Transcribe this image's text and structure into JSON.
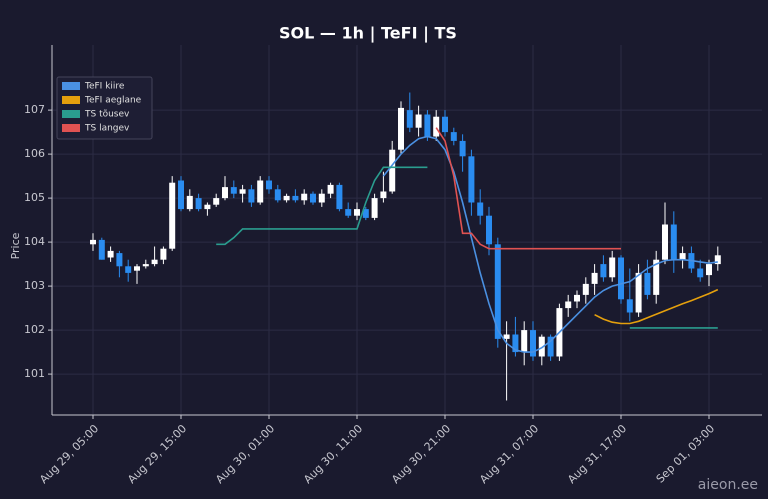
{
  "chart_data": {
    "type": "candlestick",
    "title": "SOL — 1h  |  TeFI  |  TS",
    "y_label": "Price",
    "watermark": "aieon.ee",
    "up_color": "#ffffff",
    "down_color": "#2a8cf0",
    "grid": true,
    "legend": "upper left",
    "x": [
      "Aug 29, 05:00",
      "Aug 29, 06:00",
      "Aug 29, 07:00",
      "Aug 29, 08:00",
      "Aug 29, 09:00",
      "Aug 29, 10:00",
      "Aug 29, 11:00",
      "Aug 29, 12:00",
      "Aug 29, 13:00",
      "Aug 29, 14:00",
      "Aug 29, 15:00",
      "Aug 29, 16:00",
      "Aug 29, 17:00",
      "Aug 29, 18:00",
      "Aug 29, 19:00",
      "Aug 29, 20:00",
      "Aug 29, 21:00",
      "Aug 29, 22:00",
      "Aug 29, 23:00",
      "Aug 30, 00:00",
      "Aug 30, 01:00",
      "Aug 30, 02:00",
      "Aug 30, 03:00",
      "Aug 30, 04:00",
      "Aug 30, 05:00",
      "Aug 30, 06:00",
      "Aug 30, 07:00",
      "Aug 30, 08:00",
      "Aug 30, 09:00",
      "Aug 30, 10:00",
      "Aug 30, 11:00",
      "Aug 30, 12:00",
      "Aug 30, 13:00",
      "Aug 30, 14:00",
      "Aug 30, 15:00",
      "Aug 30, 16:00",
      "Aug 30, 17:00",
      "Aug 30, 18:00",
      "Aug 30, 19:00",
      "Aug 30, 20:00",
      "Aug 30, 21:00",
      "Aug 30, 22:00",
      "Aug 30, 23:00",
      "Aug 31, 00:00",
      "Aug 31, 01:00",
      "Aug 31, 02:00",
      "Aug 31, 03:00",
      "Aug 31, 04:00",
      "Aug 31, 05:00",
      "Aug 31, 06:00",
      "Aug 31, 07:00",
      "Aug 31, 08:00",
      "Aug 31, 09:00",
      "Aug 31, 10:00",
      "Aug 31, 11:00",
      "Aug 31, 12:00",
      "Aug 31, 13:00",
      "Aug 31, 14:00",
      "Aug 31, 15:00",
      "Aug 31, 16:00",
      "Aug 31, 17:00",
      "Aug 31, 18:00",
      "Aug 31, 19:00",
      "Aug 31, 20:00",
      "Aug 31, 21:00",
      "Aug 31, 22:00",
      "Aug 31, 23:00",
      "Sep 01, 00:00",
      "Sep 01, 01:00",
      "Sep 01, 02:00",
      "Sep 01, 03:00",
      "Sep 01, 04:00"
    ],
    "xticks": [
      "Aug 29, 05:00",
      "Aug 29, 15:00",
      "Aug 30, 01:00",
      "Aug 30, 11:00",
      "Aug 30, 21:00",
      "Aug 31, 07:00",
      "Aug 31, 17:00",
      "Sep 01, 03:00"
    ],
    "ylim": [
      100.07,
      108.48
    ],
    "yticks": [
      101,
      102,
      103,
      104,
      105,
      106,
      107
    ],
    "candles": [
      [
        103.95,
        104.2,
        103.8,
        104.05
      ],
      [
        104.05,
        104.1,
        103.6,
        103.6
      ],
      [
        103.65,
        103.9,
        103.55,
        103.8
      ],
      [
        103.75,
        103.8,
        103.2,
        103.45
      ],
      [
        103.45,
        103.6,
        103.1,
        103.3
      ],
      [
        103.35,
        103.5,
        103.05,
        103.45
      ],
      [
        103.45,
        103.6,
        103.4,
        103.5
      ],
      [
        103.5,
        103.9,
        103.45,
        103.6
      ],
      [
        103.6,
        103.9,
        103.5,
        103.85
      ],
      [
        103.85,
        105.5,
        103.8,
        105.35
      ],
      [
        105.4,
        105.5,
        104.7,
        104.75
      ],
      [
        104.75,
        105.2,
        104.7,
        105.05
      ],
      [
        105.0,
        105.1,
        104.7,
        104.75
      ],
      [
        104.75,
        104.9,
        104.6,
        104.85
      ],
      [
        104.85,
        105.1,
        104.8,
        105.0
      ],
      [
        105.0,
        105.5,
        104.95,
        105.25
      ],
      [
        105.25,
        105.4,
        105.0,
        105.1
      ],
      [
        105.1,
        105.3,
        104.9,
        105.2
      ],
      [
        105.2,
        105.3,
        104.8,
        104.9
      ],
      [
        104.9,
        105.5,
        104.85,
        105.4
      ],
      [
        105.4,
        105.5,
        105.1,
        105.2
      ],
      [
        105.2,
        105.3,
        104.9,
        104.95
      ],
      [
        104.95,
        105.1,
        104.9,
        105.05
      ],
      [
        105.05,
        105.2,
        104.9,
        104.95
      ],
      [
        104.95,
        105.2,
        104.85,
        105.1
      ],
      [
        105.1,
        105.15,
        104.85,
        104.9
      ],
      [
        104.9,
        105.2,
        104.8,
        105.1
      ],
      [
        105.1,
        105.35,
        105.0,
        105.3
      ],
      [
        105.3,
        105.35,
        104.7,
        104.75
      ],
      [
        104.75,
        104.9,
        104.55,
        104.6
      ],
      [
        104.6,
        104.9,
        104.5,
        104.75
      ],
      [
        104.75,
        104.8,
        104.5,
        104.55
      ],
      [
        104.55,
        105.1,
        104.5,
        105.0
      ],
      [
        105.0,
        105.6,
        104.9,
        105.15
      ],
      [
        105.15,
        106.3,
        105.1,
        106.1
      ],
      [
        106.1,
        107.2,
        106.0,
        107.05
      ],
      [
        107.0,
        107.4,
        106.5,
        106.6
      ],
      [
        106.6,
        107.1,
        106.4,
        106.9
      ],
      [
        106.9,
        107.0,
        106.3,
        106.4
      ],
      [
        106.4,
        107.0,
        106.3,
        106.85
      ],
      [
        106.85,
        107.0,
        106.4,
        106.5
      ],
      [
        106.5,
        106.6,
        106.2,
        106.3
      ],
      [
        106.3,
        106.45,
        105.6,
        105.95
      ],
      [
        105.95,
        106.1,
        104.6,
        104.9
      ],
      [
        104.9,
        105.2,
        104.4,
        104.6
      ],
      [
        104.6,
        104.8,
        103.7,
        103.95
      ],
      [
        103.95,
        104.1,
        101.6,
        101.8
      ],
      [
        101.8,
        102.2,
        100.4,
        101.9
      ],
      [
        101.9,
        102.3,
        101.4,
        101.5
      ],
      [
        101.5,
        102.2,
        101.2,
        102.0
      ],
      [
        102.0,
        102.2,
        101.3,
        101.4
      ],
      [
        101.4,
        101.9,
        101.2,
        101.85
      ],
      [
        101.85,
        101.9,
        101.3,
        101.4
      ],
      [
        101.4,
        102.6,
        101.3,
        102.5
      ],
      [
        102.5,
        102.8,
        102.3,
        102.65
      ],
      [
        102.65,
        102.9,
        102.5,
        102.8
      ],
      [
        102.8,
        103.2,
        102.6,
        103.05
      ],
      [
        103.05,
        103.5,
        102.8,
        103.3
      ],
      [
        103.5,
        103.7,
        103.1,
        103.2
      ],
      [
        103.2,
        103.8,
        103.1,
        103.65
      ],
      [
        103.65,
        103.7,
        102.6,
        102.7
      ],
      [
        102.7,
        103.4,
        102.2,
        102.4
      ],
      [
        102.4,
        103.5,
        102.3,
        103.3
      ],
      [
        103.3,
        103.6,
        102.7,
        102.8
      ],
      [
        102.8,
        103.8,
        102.6,
        103.6
      ],
      [
        103.6,
        104.9,
        103.5,
        104.4
      ],
      [
        104.4,
        104.7,
        103.3,
        103.6
      ],
      [
        103.6,
        103.9,
        103.4,
        103.75
      ],
      [
        103.75,
        103.9,
        103.3,
        103.4
      ],
      [
        103.4,
        103.6,
        103.1,
        103.2
      ],
      [
        103.25,
        103.6,
        103.0,
        103.5
      ],
      [
        103.5,
        103.9,
        103.35,
        103.7
      ]
    ],
    "series": [
      {
        "name": "TeFI kiire",
        "color": "#4a90e2",
        "values": [
          null,
          null,
          null,
          null,
          null,
          null,
          null,
          null,
          null,
          null,
          null,
          null,
          null,
          null,
          null,
          null,
          null,
          null,
          null,
          null,
          null,
          null,
          null,
          null,
          null,
          null,
          null,
          null,
          null,
          null,
          null,
          null,
          null,
          105.5,
          105.75,
          106.0,
          106.2,
          106.35,
          106.4,
          106.35,
          106.1,
          105.6,
          104.9,
          104.1,
          103.3,
          102.6,
          102.0,
          101.7,
          101.55,
          101.5,
          101.5,
          101.6,
          101.75,
          101.95,
          102.15,
          102.35,
          102.55,
          102.75,
          102.9,
          103.0,
          103.05,
          103.1,
          103.25,
          103.4,
          103.5,
          103.58,
          103.6,
          103.6,
          103.58,
          103.55,
          103.52,
          103.55
        ]
      },
      {
        "name": "TeFI aeglane",
        "color": "#e5a00d",
        "values": [
          null,
          null,
          null,
          null,
          null,
          null,
          null,
          null,
          null,
          null,
          null,
          null,
          null,
          null,
          null,
          null,
          null,
          null,
          null,
          null,
          null,
          null,
          null,
          null,
          null,
          null,
          null,
          null,
          null,
          null,
          null,
          null,
          null,
          null,
          null,
          null,
          null,
          null,
          null,
          null,
          null,
          null,
          null,
          null,
          null,
          null,
          null,
          null,
          null,
          null,
          null,
          null,
          null,
          null,
          null,
          null,
          null,
          102.35,
          102.25,
          102.18,
          102.15,
          102.15,
          102.2,
          102.28,
          102.36,
          102.44,
          102.52,
          102.6,
          102.67,
          102.75,
          102.83,
          102.92
        ]
      },
      {
        "name": "TS tõusev",
        "color": "#2a9d8f",
        "values": [
          null,
          null,
          null,
          null,
          null,
          null,
          null,
          null,
          null,
          null,
          null,
          null,
          null,
          null,
          103.95,
          103.95,
          104.1,
          104.3,
          104.3,
          104.3,
          104.3,
          104.3,
          104.3,
          104.3,
          104.3,
          104.3,
          104.3,
          104.3,
          104.3,
          104.3,
          104.3,
          104.9,
          105.4,
          105.7,
          105.7,
          105.7,
          105.7,
          105.7,
          105.7,
          null,
          null,
          null,
          null,
          null,
          null,
          null,
          null,
          null,
          null,
          null,
          null,
          null,
          null,
          null,
          null,
          null,
          null,
          null,
          null,
          null,
          null,
          102.05,
          102.05,
          102.05,
          102.05,
          102.05,
          102.05,
          102.05,
          102.05,
          102.05,
          102.05,
          102.05
        ]
      },
      {
        "name": "TS langev",
        "color": "#e05252",
        "values": [
          null,
          null,
          null,
          null,
          null,
          null,
          null,
          null,
          null,
          null,
          null,
          null,
          null,
          null,
          null,
          null,
          null,
          null,
          null,
          null,
          null,
          null,
          null,
          null,
          null,
          null,
          null,
          null,
          null,
          null,
          null,
          null,
          null,
          null,
          null,
          null,
          null,
          null,
          null,
          106.6,
          106.3,
          105.5,
          104.2,
          104.2,
          103.95,
          103.85,
          103.85,
          103.85,
          103.85,
          103.85,
          103.85,
          103.85,
          103.85,
          103.85,
          103.85,
          103.85,
          103.85,
          103.85,
          103.85,
          103.85,
          103.85,
          null,
          null,
          null,
          null,
          null,
          null,
          null,
          null,
          null,
          null,
          null
        ]
      }
    ]
  }
}
